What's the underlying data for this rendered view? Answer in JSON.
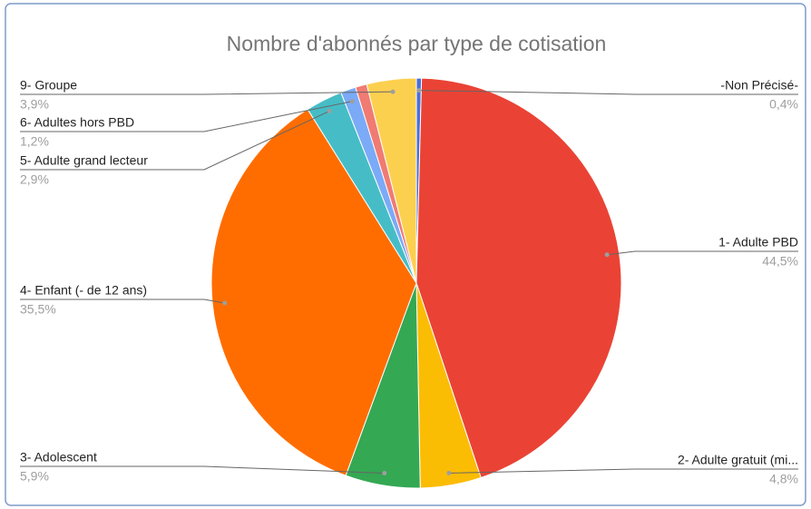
{
  "chart_data": {
    "type": "pie",
    "title": "Nombre d'abonnés par type de cotisation",
    "categories": [
      "-Non Précisé-",
      "1- Adulte PBD",
      "2- Adulte gratuit (mi...",
      "3- Adolescent",
      "4- Enfant (- de 12 ans)",
      "5- Adulte grand lecteur",
      "6- Adultes hors PBD",
      null,
      "9- Groupe"
    ],
    "values": [
      0.4,
      44.5,
      4.8,
      5.9,
      35.5,
      2.9,
      1.2,
      0.9,
      3.9
    ],
    "value_labels": [
      "0,4%",
      "44,5%",
      "4,8%",
      "5,9%",
      "35,5%",
      "2,9%",
      "1,2%",
      null,
      "3,9%"
    ],
    "colors": [
      "#4a6fd8",
      "#ea4335",
      "#fbbc04",
      "#34a853",
      "#ff6d01",
      "#46bdc6",
      "#7baaf7",
      "#f07b72",
      "#fcd04f"
    ]
  }
}
